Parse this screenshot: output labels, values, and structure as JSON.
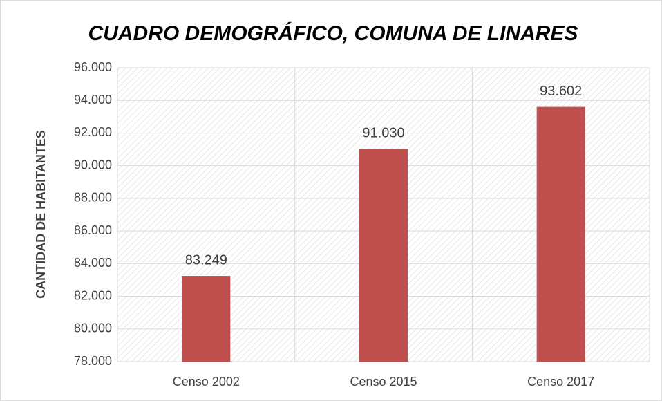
{
  "chart_data": {
    "type": "bar",
    "title": "CUADRO DEMOGRÁFICO, COMUNA DE LINARES",
    "y_label": "CANTIDAD DE HABITANTES",
    "categories": [
      "Censo 2002",
      "Censo 2015",
      "Censo 2017"
    ],
    "values": [
      83249,
      91030,
      93602
    ],
    "value_labels": [
      "83.249",
      "91.030",
      "93.602"
    ],
    "color": "#c0504d",
    "ylim": [
      78000,
      96000
    ],
    "yticks": [
      {
        "value": 78000,
        "label": "78.000"
      },
      {
        "value": 80000,
        "label": "80.000"
      },
      {
        "value": 82000,
        "label": "82.000"
      },
      {
        "value": 84000,
        "label": "84.000"
      },
      {
        "value": 86000,
        "label": "86.000"
      },
      {
        "value": 88000,
        "label": "88.000"
      },
      {
        "value": 90000,
        "label": "90.000"
      },
      {
        "value": 92000,
        "label": "92.000"
      },
      {
        "value": 94000,
        "label": "94.000"
      },
      {
        "value": 96000,
        "label": "96.000"
      }
    ],
    "grid": true
  }
}
